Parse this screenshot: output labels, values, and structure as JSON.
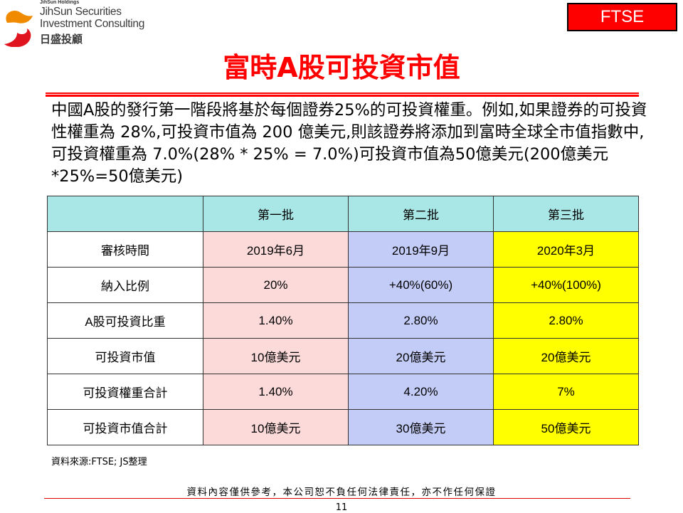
{
  "logo": {
    "holding": "JihSun Holdings",
    "line1": "JihSun Securities",
    "line2": "Investment Consulting",
    "chinese": "日盛投顧"
  },
  "badge": "FTSE",
  "title": "富時A股可投資市值",
  "paragraph": "中國A股的發行第一階段將基於每個證券25%的可投資權重。例如,如果證券的可投資性權重為 28%,可投資市值為 200 億美元,則該證券將添加到富時全球全市值指數中,可投資權重為 7.0%(28% * 25% = 7.0%)可投資市值為50億美元(200億美元*25%=50億美元)",
  "table": {
    "headers": [
      "",
      "第一批",
      "第二批",
      "第三批"
    ],
    "rows": [
      [
        "審核時間",
        "2019年6月",
        "2019年9月",
        "2020年3月"
      ],
      [
        "納入比例",
        "20%",
        "+40%(60%)",
        "+40%(100%)"
      ],
      [
        "A股可投資比重",
        "1.40%",
        "2.80%",
        "2.80%"
      ],
      [
        "可投資市值",
        "10億美元",
        "20億美元",
        "20億美元"
      ],
      [
        "可投資權重合計",
        "1.40%",
        "4.20%",
        "7%"
      ],
      [
        "可投資市值合計",
        "10億美元",
        "30億美元",
        "50億美元"
      ]
    ]
  },
  "source": "資料來源:FTSE; JS整理",
  "disclaimer": "資料內容僅供參考，本公司恕不負任何法律責任，亦不作任何保證",
  "page_number": "11",
  "colors": {
    "accent": "#ff0000",
    "header": "#a9e6e6",
    "batch1": "#fcdada",
    "batch2": "#c3ccf7",
    "batch3": "#ffff00"
  }
}
